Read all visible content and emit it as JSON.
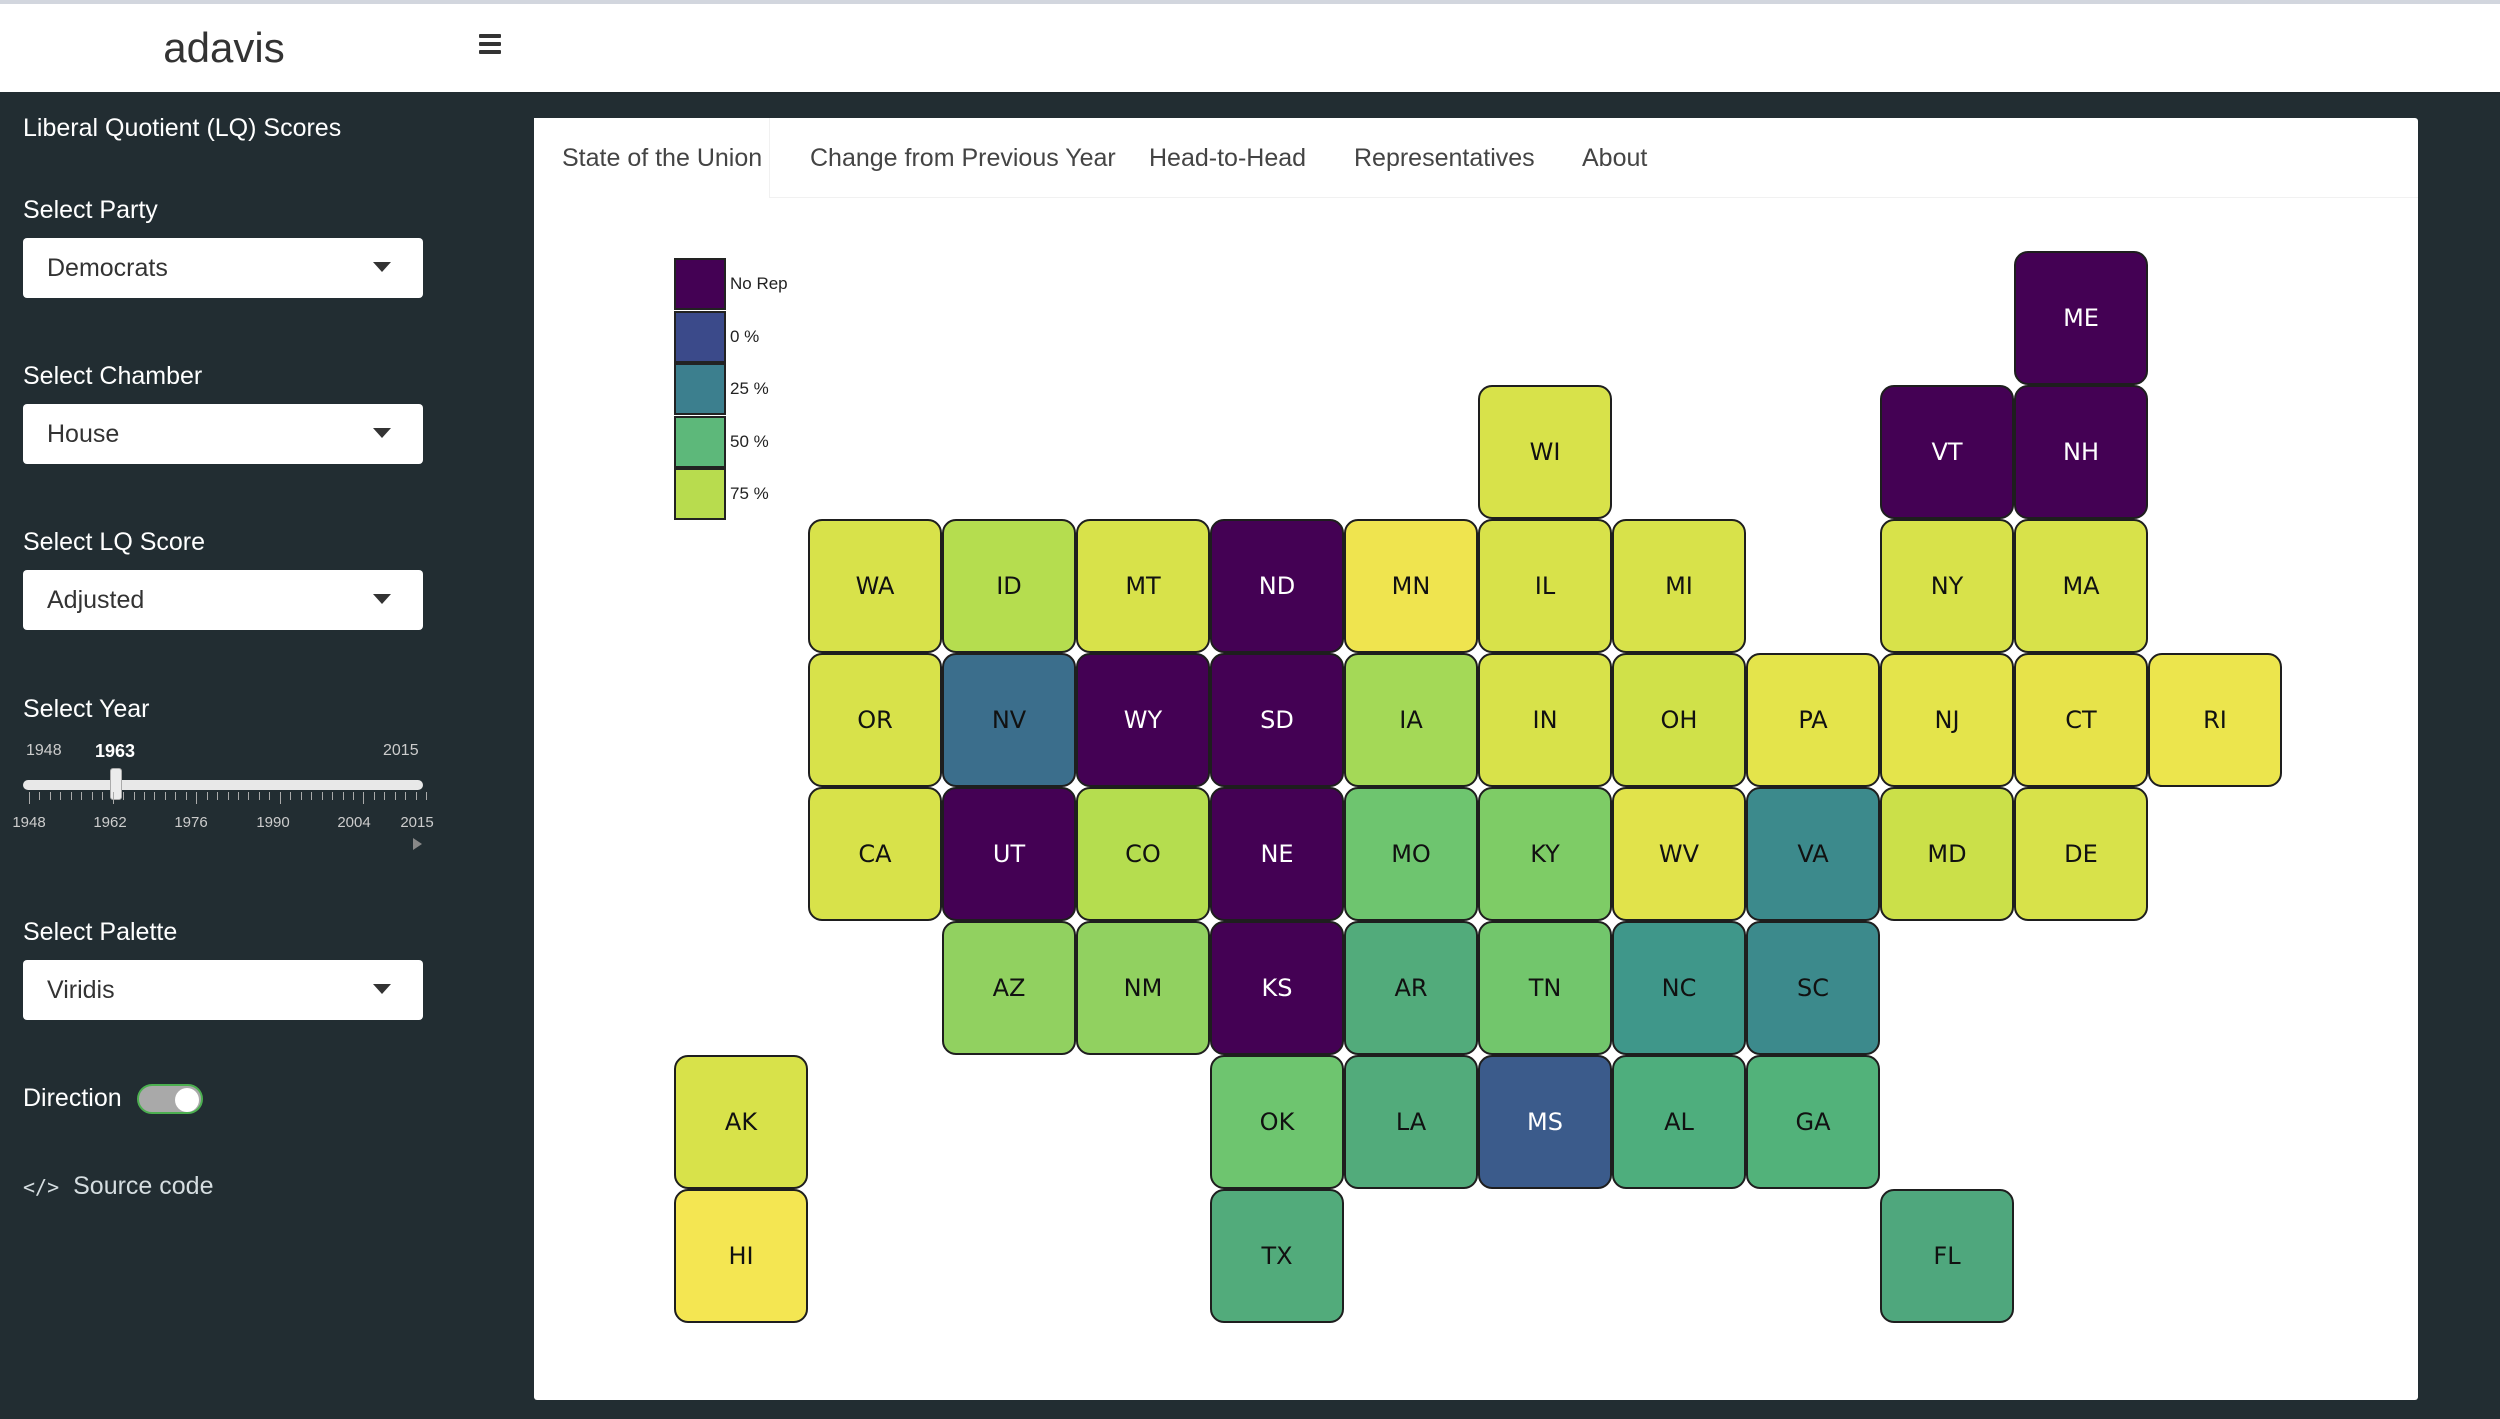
{
  "header": {
    "brand": "adavis"
  },
  "sidebar": {
    "title": "Liberal Quotient (LQ) Scores",
    "party": {
      "label": "Select Party",
      "value": "Democrats"
    },
    "chamber": {
      "label": "Select Chamber",
      "value": "House"
    },
    "lq": {
      "label": "Select LQ Score",
      "value": "Adjusted"
    },
    "year": {
      "label": "Select Year",
      "min": "1948",
      "max": "2015",
      "current": "1963",
      "ticks": [
        "1948",
        "1962",
        "1976",
        "1990",
        "2004",
        "2015"
      ]
    },
    "palette": {
      "label": "Select Palette",
      "value": "Viridis"
    },
    "direction": {
      "label": "Direction",
      "on": true
    },
    "source_label": "Source code",
    "source_icon": "code-icon"
  },
  "tabs": [
    "State of the Union",
    "Change from Previous Year",
    "Head-to-Head",
    "Representatives",
    "About"
  ],
  "active_tab": 0,
  "legend": [
    {
      "label": "No Rep",
      "color": "#440154"
    },
    {
      "label": "0 %",
      "color": "#3b4a8a"
    },
    {
      "label": "25 %",
      "color": "#3c7f8e"
    },
    {
      "label": "50 %",
      "color": "#5db87a"
    },
    {
      "label": "75 %",
      "color": "#b8dc4e"
    }
  ],
  "states": [
    {
      "abbr": "ME",
      "col": 10,
      "row": 0,
      "color": "#440154"
    },
    {
      "abbr": "WI",
      "col": 6,
      "row": 1,
      "color": "#d8e24a"
    },
    {
      "abbr": "VT",
      "col": 9,
      "row": 1,
      "color": "#440154"
    },
    {
      "abbr": "NH",
      "col": 10,
      "row": 1,
      "color": "#440154"
    },
    {
      "abbr": "WA",
      "col": 1,
      "row": 2,
      "color": "#d8e24a"
    },
    {
      "abbr": "ID",
      "col": 2,
      "row": 2,
      "color": "#b5dd4f"
    },
    {
      "abbr": "MT",
      "col": 3,
      "row": 2,
      "color": "#d8e24a"
    },
    {
      "abbr": "ND",
      "col": 4,
      "row": 2,
      "color": "#440154"
    },
    {
      "abbr": "MN",
      "col": 5,
      "row": 2,
      "color": "#efe44f"
    },
    {
      "abbr": "IL",
      "col": 6,
      "row": 2,
      "color": "#d8e24a"
    },
    {
      "abbr": "MI",
      "col": 7,
      "row": 2,
      "color": "#d8e24a"
    },
    {
      "abbr": "NY",
      "col": 9,
      "row": 2,
      "color": "#d8e24a"
    },
    {
      "abbr": "MA",
      "col": 10,
      "row": 2,
      "color": "#d8e24a"
    },
    {
      "abbr": "OR",
      "col": 1,
      "row": 3,
      "color": "#d8e24a"
    },
    {
      "abbr": "NV",
      "col": 2,
      "row": 3,
      "color": "#3b6e8c"
    },
    {
      "abbr": "WY",
      "col": 3,
      "row": 3,
      "color": "#440154"
    },
    {
      "abbr": "SD",
      "col": 4,
      "row": 3,
      "color": "#440154"
    },
    {
      "abbr": "IA",
      "col": 5,
      "row": 3,
      "color": "#a4d957"
    },
    {
      "abbr": "IN",
      "col": 6,
      "row": 3,
      "color": "#d8e24a"
    },
    {
      "abbr": "OH",
      "col": 7,
      "row": 3,
      "color": "#d0e149"
    },
    {
      "abbr": "PA",
      "col": 8,
      "row": 3,
      "color": "#e4e44b"
    },
    {
      "abbr": "NJ",
      "col": 9,
      "row": 3,
      "color": "#e4e44b"
    },
    {
      "abbr": "CT",
      "col": 10,
      "row": 3,
      "color": "#e7e34a"
    },
    {
      "abbr": "RI",
      "col": 11,
      "row": 3,
      "color": "#ece54d"
    },
    {
      "abbr": "CA",
      "col": 1,
      "row": 4,
      "color": "#d8e24a"
    },
    {
      "abbr": "UT",
      "col": 2,
      "row": 4,
      "color": "#440154"
    },
    {
      "abbr": "CO",
      "col": 3,
      "row": 4,
      "color": "#b5dd4f"
    },
    {
      "abbr": "NE",
      "col": 4,
      "row": 4,
      "color": "#440154"
    },
    {
      "abbr": "MO",
      "col": 5,
      "row": 4,
      "color": "#6ec56f"
    },
    {
      "abbr": "KY",
      "col": 6,
      "row": 4,
      "color": "#7ecc66"
    },
    {
      "abbr": "WV",
      "col": 7,
      "row": 4,
      "color": "#e1e34b"
    },
    {
      "abbr": "VA",
      "col": 8,
      "row": 4,
      "color": "#3c8a8c"
    },
    {
      "abbr": "MD",
      "col": 9,
      "row": 4,
      "color": "#cbe049"
    },
    {
      "abbr": "DE",
      "col": 10,
      "row": 4,
      "color": "#d8e24a"
    },
    {
      "abbr": "AZ",
      "col": 2,
      "row": 5,
      "color": "#91d160"
    },
    {
      "abbr": "NM",
      "col": 3,
      "row": 5,
      "color": "#91d160"
    },
    {
      "abbr": "KS",
      "col": 4,
      "row": 5,
      "color": "#440154"
    },
    {
      "abbr": "AR",
      "col": 5,
      "row": 5,
      "color": "#52ab7b"
    },
    {
      "abbr": "TN",
      "col": 6,
      "row": 5,
      "color": "#72c66c"
    },
    {
      "abbr": "NC",
      "col": 7,
      "row": 5,
      "color": "#3f978a"
    },
    {
      "abbr": "SC",
      "col": 8,
      "row": 5,
      "color": "#3c8a8c"
    },
    {
      "abbr": "AK",
      "col": 0,
      "row": 6,
      "color": "#d8e24a"
    },
    {
      "abbr": "OK",
      "col": 4,
      "row": 6,
      "color": "#6ec56f"
    },
    {
      "abbr": "LA",
      "col": 5,
      "row": 6,
      "color": "#52ab7b"
    },
    {
      "abbr": "MS",
      "col": 6,
      "row": 6,
      "color": "#3b5b8b"
    },
    {
      "abbr": "AL",
      "col": 7,
      "row": 6,
      "color": "#4eae7d"
    },
    {
      "abbr": "GA",
      "col": 8,
      "row": 6,
      "color": "#52b27a"
    },
    {
      "abbr": "HI",
      "col": 0,
      "row": 7,
      "color": "#f4e652"
    },
    {
      "abbr": "TX",
      "col": 4,
      "row": 7,
      "color": "#52ab7b"
    },
    {
      "abbr": "FL",
      "col": 9,
      "row": 7,
      "color": "#4fa77d"
    }
  ]
}
